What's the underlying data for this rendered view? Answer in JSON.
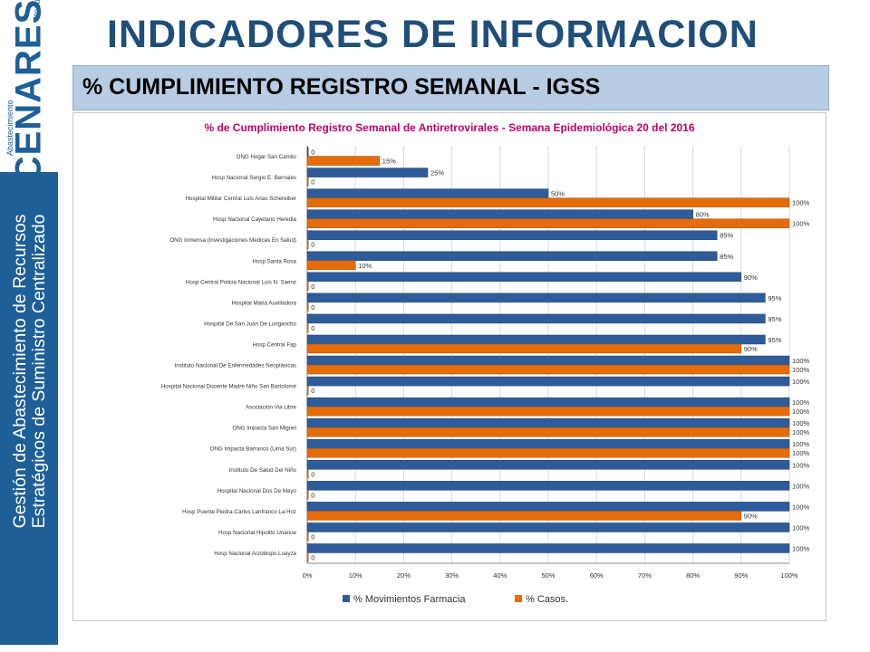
{
  "sidebar": {
    "logo_top_text": "Insumos en Salud",
    "logo_word": "CENARES",
    "logo_bottom_text": "Abastecimiento",
    "line1": "Gestión de Abastecimiento de Recursos",
    "line2": "Estratégicos de Suministro Centralizado"
  },
  "page_title": "INDICADORES DE INFORMACION",
  "subtitle": "% CUMPLIMIENTO REGISTRO SEMANAL - IGSS",
  "chart_data": {
    "type": "bar",
    "orientation": "horizontal",
    "title": "% de Cumplimiento Registro Semanal de Antiretrovirales - Semana Epidemiológica 20 del 2016",
    "categories": [
      "ONG Hogar San Camilo",
      "Hosp Nacional Sergio E. Bernales",
      "Hospital Militar Central Luis Arias Schereiber",
      "Hosp Nacional Cayetano Heredia",
      "ONG Inmensa (Investigaciones Medicas En Salud)",
      "Hosp Santa Rosa",
      "Hosp Central Policia Nacional Luis N. Saenz",
      "Hospital Maria Auxiliadora",
      "Hospital De San Juan De Lurigancho",
      "Hosp Central Fap",
      "Instituto Nacional De Enfermedades Neoplásicas",
      "Hospital Nacional Docente Madre Niño San Bartolomé",
      "Asociación Via Libre",
      "ONG Impacta San Miguel",
      "ONG Impacta Barranco (Lima Sur)",
      "Instituto De Salud Del Niño",
      "Hospital Nacional Dos De Mayo",
      "Hosp Puente Piedra-Carlos Lanfranco La Hoz",
      "Hosp Nacional Hipolito Unanue",
      "Hosp Nacional Arzobispo Loayza"
    ],
    "series": [
      {
        "name": "% Movimientos Farmacia",
        "color": "#2e5c9a",
        "values": [
          0,
          25,
          50,
          80,
          85,
          85,
          90,
          95,
          95,
          95,
          100,
          100,
          100,
          100,
          100,
          100,
          100,
          100,
          100,
          100
        ],
        "labels": [
          "0",
          "25%",
          "50%",
          "80%",
          "85%",
          "85%",
          "90%",
          "95%",
          "95%",
          "95%",
          "100%",
          "100%",
          "100%",
          "100%",
          "100%",
          "100%",
          "100%",
          "100%",
          "100%",
          "100%"
        ]
      },
      {
        "name": "% Casos.",
        "color": "#e46c0a",
        "values": [
          15,
          0,
          100,
          100,
          0,
          10,
          0,
          0,
          0,
          90,
          100,
          0,
          100,
          100,
          100,
          0,
          0,
          90,
          0,
          0
        ],
        "labels": [
          "15%",
          "0",
          "100%",
          "100%",
          "0",
          "10%",
          "0",
          "0",
          "0",
          "90%",
          "100%",
          "0",
          "100%",
          "100%",
          "100%",
          "0",
          "0",
          "90%",
          "0",
          "0"
        ]
      }
    ],
    "xlim": [
      0,
      100
    ],
    "x_ticks": [
      "0%",
      "10%",
      "20%",
      "30%",
      "40%",
      "50%",
      "60%",
      "70%",
      "80%",
      "90%",
      "100%"
    ],
    "grid": true,
    "legend_position": "bottom"
  }
}
